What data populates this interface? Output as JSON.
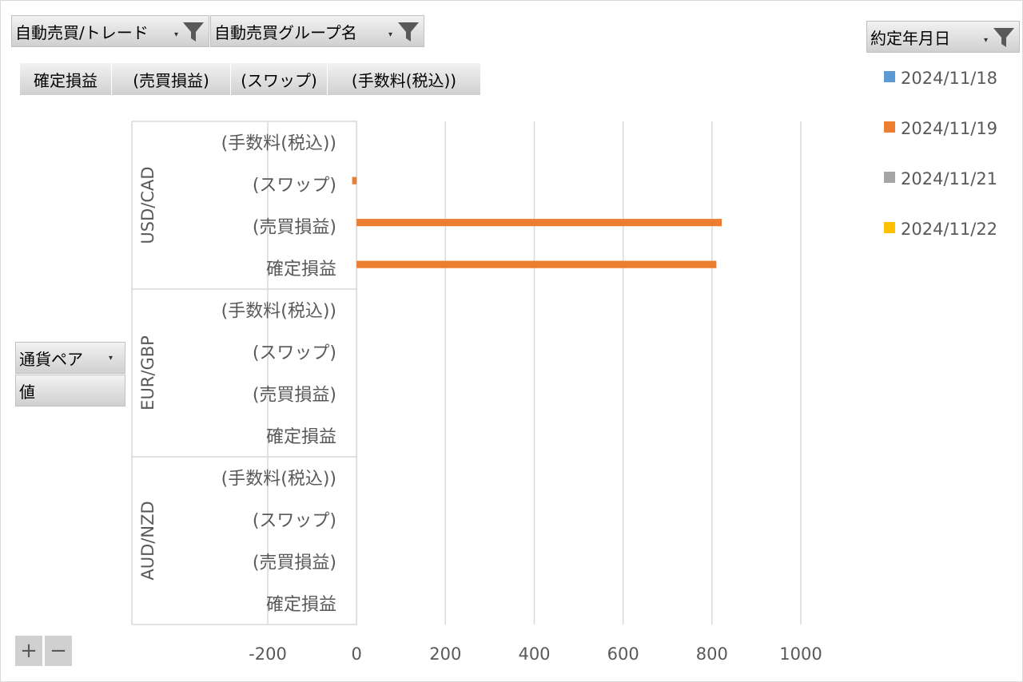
{
  "filters": {
    "trade": "自動売買/トレード",
    "group": "自動売買グループ名",
    "date": "約定年月日"
  },
  "values_bar": [
    "確定損益",
    "(売買損益)",
    "(スワップ)",
    "(手数料(税込))"
  ],
  "row_fields": {
    "pair": "通貨ペア",
    "value": "値"
  },
  "zoom": {
    "plus": "+",
    "minus": "−"
  },
  "colors": {
    "2024/11/18": "#5b9bd5",
    "2024/11/19": "#ed7d31",
    "2024/11/21": "#a5a5a5",
    "2024/11/22": "#ffc000"
  },
  "chart_data": {
    "type": "bar",
    "orientation": "horizontal",
    "groups": [
      {
        "name": "USD/CAD",
        "categories": [
          "(手数料(税込))",
          "(スワップ)",
          "(売買損益)",
          "確定損益"
        ]
      },
      {
        "name": "EUR/GBP",
        "categories": [
          "(手数料(税込))",
          "(スワップ)",
          "(売買損益)",
          "確定損益"
        ]
      },
      {
        "name": "AUD/NZD",
        "categories": [
          "(手数料(税込))",
          "(スワップ)",
          "(売買損益)",
          "確定損益"
        ]
      }
    ],
    "series": [
      {
        "name": "2024/11/18",
        "color": "#5b9bd5",
        "values": [
          null,
          null,
          null,
          null,
          null,
          null,
          null,
          null,
          null,
          null,
          null,
          null
        ]
      },
      {
        "name": "2024/11/19",
        "color": "#ed7d31",
        "values": [
          null,
          -10,
          822,
          810,
          null,
          null,
          null,
          null,
          null,
          null,
          null,
          null
        ]
      },
      {
        "name": "2024/11/21",
        "color": "#a5a5a5",
        "values": [
          null,
          null,
          null,
          null,
          null,
          null,
          null,
          null,
          null,
          null,
          null,
          null
        ]
      },
      {
        "name": "2024/11/22",
        "color": "#ffc000",
        "values": [
          null,
          null,
          null,
          null,
          null,
          null,
          null,
          null,
          null,
          null,
          null,
          null
        ]
      }
    ],
    "xticks": [
      -200,
      0,
      200,
      400,
      600,
      800,
      1000
    ],
    "xlim": [
      -200,
      1000
    ],
    "grid": true,
    "legend": "right"
  }
}
